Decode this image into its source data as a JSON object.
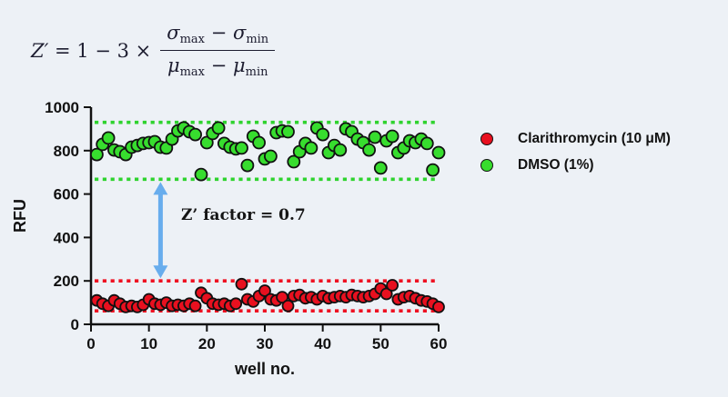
{
  "formula": {
    "lhs_var": "Z′",
    "lhs_rest": " = 1 − 3 ×",
    "num_t1": "σ",
    "num_t1_sub": "max",
    "num_op": " − ",
    "num_t2": "σ",
    "num_t2_sub": "min",
    "den_t1": "μ",
    "den_t1_sub": "max",
    "den_op": " − ",
    "den_t2": "μ",
    "den_t2_sub": "min"
  },
  "annotation_label": "Z’ factor = 0.7",
  "colors": {
    "background": "#edf1f6",
    "axis": "#111111",
    "arrow": "#68aded",
    "dmso_green": "#37dd2e",
    "clarithromycin_red": "#e8101f"
  },
  "chart_data": {
    "type": "scatter",
    "title": "",
    "xlabel": "well no.",
    "ylabel": "RFU",
    "xlim": [
      0,
      60
    ],
    "ylim": [
      0,
      1000
    ],
    "x_ticks": [
      0,
      10,
      20,
      30,
      40,
      50,
      60
    ],
    "y_ticks": [
      0,
      200,
      400,
      600,
      800,
      1000
    ],
    "grid": false,
    "legend_position": "right",
    "x_unit": "well number 1-60 (one point per well)",
    "series": [
      {
        "name": "Clarithromycin (10 μM)",
        "color": "#e8101f",
        "marker": "circle",
        "marker_radius": 6,
        "values": [
          110,
          95,
          85,
          110,
          95,
          80,
          85,
          80,
          90,
          115,
          95,
          90,
          100,
          85,
          90,
          85,
          95,
          85,
          145,
          120,
          95,
          90,
          95,
          85,
          95,
          185,
          115,
          105,
          130,
          155,
          115,
          110,
          125,
          85,
          130,
          135,
          120,
          125,
          115,
          130,
          120,
          125,
          130,
          125,
          135,
          130,
          125,
          130,
          140,
          165,
          140,
          180,
          115,
          125,
          130,
          120,
          110,
          105,
          95,
          80
        ]
      },
      {
        "name": "DMSO (1%)",
        "color": "#37dd2e",
        "marker": "circle",
        "marker_radius": 6.5,
        "values": [
          782,
          829,
          858,
          803,
          795,
          782,
          816,
          824,
          833,
          837,
          841,
          816,
          812,
          853,
          891,
          904,
          887,
          874,
          690,
          837,
          879,
          904,
          833,
          816,
          808,
          812,
          732,
          866,
          837,
          762,
          774,
          883,
          891,
          887,
          749,
          795,
          833,
          812,
          904,
          874,
          791,
          824,
          803,
          900,
          887,
          853,
          837,
          803,
          862,
          720,
          845,
          866,
          791,
          812,
          845,
          837,
          853,
          833,
          711,
          791
        ]
      }
    ],
    "reference_lines": [
      {
        "id": "dmso-upper",
        "series": "DMSO (1%)",
        "bound": "upper",
        "value": 930,
        "color": "#2fd32f",
        "style": "dashed"
      },
      {
        "id": "dmso-lower",
        "series": "DMSO (1%)",
        "bound": "lower",
        "value": 668,
        "color": "#2fd32f",
        "style": "dashed"
      },
      {
        "id": "clarithromycin-upper",
        "series": "Clarithromycin (10 μM)",
        "bound": "upper",
        "value": 200,
        "color": "#ee1122",
        "style": "dashed"
      },
      {
        "id": "clarithromycin-lower",
        "series": "Clarithromycin (10 μM)",
        "bound": "lower",
        "value": 62,
        "color": "#ee1122",
        "style": "dashed"
      }
    ],
    "annotation": {
      "label": "Z’ factor = 0.7",
      "arrow_x_well": 12,
      "arrow_between_values": [
        668,
        200
      ],
      "arrow_color": "#68aded"
    }
  }
}
